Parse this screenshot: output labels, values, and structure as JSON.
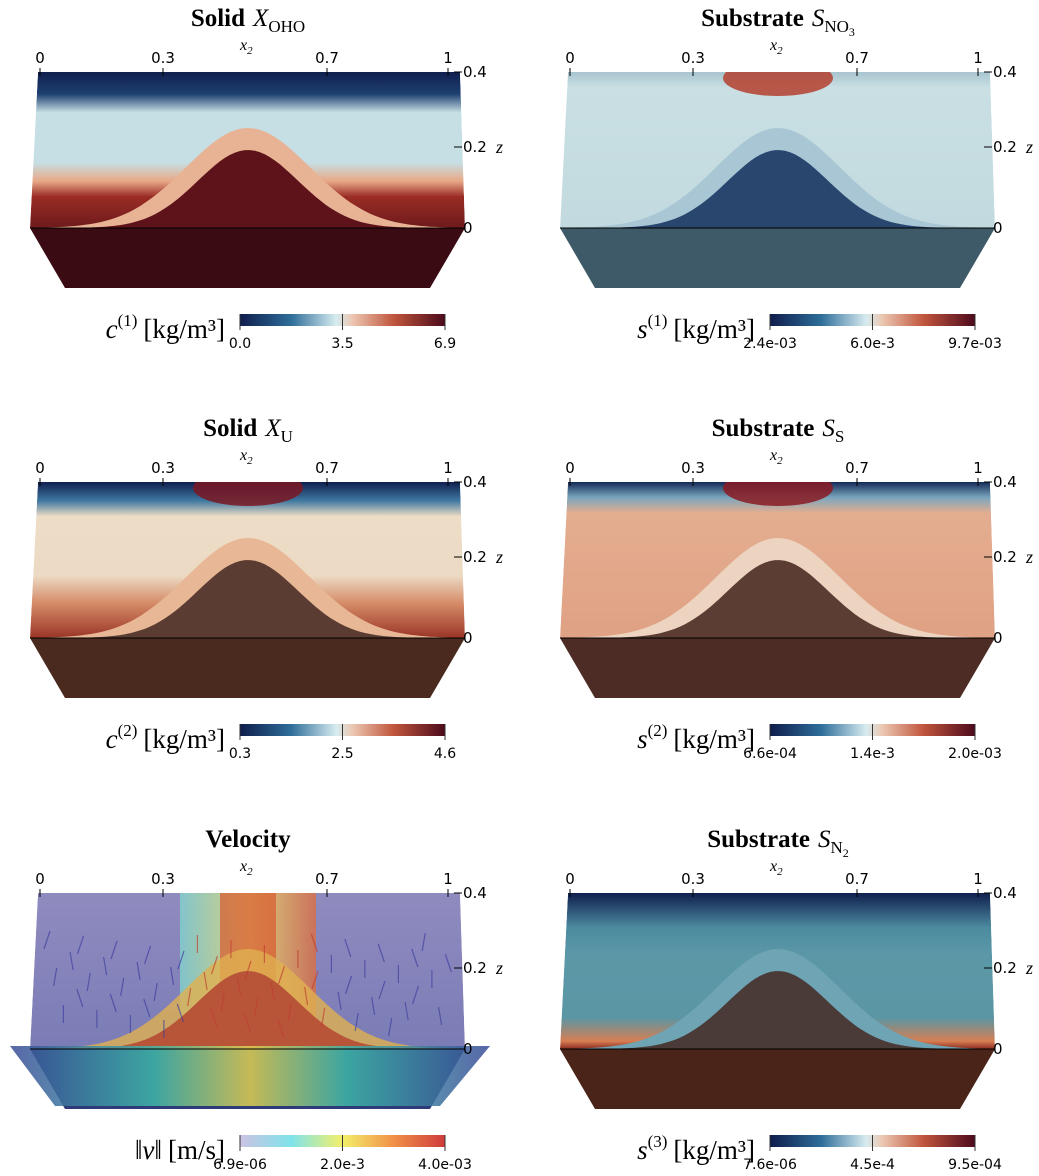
{
  "axes": {
    "x_label": "x",
    "x_label_sub": "2",
    "x_ticks": [
      "0",
      "0.3",
      "0.7",
      "1"
    ],
    "z_ticks": [
      "0.4",
      "0.2",
      "0"
    ],
    "z_label": "z"
  },
  "panels": [
    {
      "title": {
        "label": "Solid",
        "symbol": "X",
        "subscript": "OHO"
      },
      "colorbar": {
        "quantity": "c",
        "superscript": "(1)",
        "unit": "[kg/m³]",
        "ticks": [
          "0.0",
          "3.5",
          "6.9"
        ]
      }
    },
    {
      "title": {
        "label": "Substrate",
        "symbol": "S",
        "subscript": "NO",
        "subscript_sub": "3"
      },
      "colorbar": {
        "quantity": "s",
        "superscript": "(1)",
        "unit": "[kg/m³]",
        "ticks": [
          "2.4e-03",
          "6.0e-3",
          "9.7e-03"
        ]
      }
    },
    {
      "title": {
        "label": "Solid",
        "symbol": "X",
        "subscript": "U"
      },
      "colorbar": {
        "quantity": "c",
        "superscript": "(2)",
        "unit": "[kg/m³]",
        "ticks": [
          "0.3",
          "2.5",
          "4.6"
        ]
      }
    },
    {
      "title": {
        "label": "Substrate",
        "symbol": "S",
        "subscript": "S"
      },
      "colorbar": {
        "quantity": "s",
        "superscript": "(2)",
        "unit": "[kg/m³]",
        "ticks": [
          "6.6e-04",
          "1.4e-3",
          "2.0e-03"
        ]
      }
    },
    {
      "title": {
        "label": "Velocity"
      },
      "colorbar": {
        "quantity": "‖v‖",
        "unit": "[m/s]",
        "ticks": [
          "6.9e-06",
          "2.0e-3",
          "4.0e-03"
        ]
      }
    },
    {
      "title": {
        "label": "Substrate",
        "symbol": "S",
        "subscript": "N",
        "subscript_sub": "2"
      },
      "colorbar": {
        "quantity": "s",
        "superscript": "(3)",
        "unit": "[kg/m³]",
        "ticks": [
          "7.6e-06",
          "4.5e-4",
          "9.5e-04"
        ]
      }
    }
  ]
}
